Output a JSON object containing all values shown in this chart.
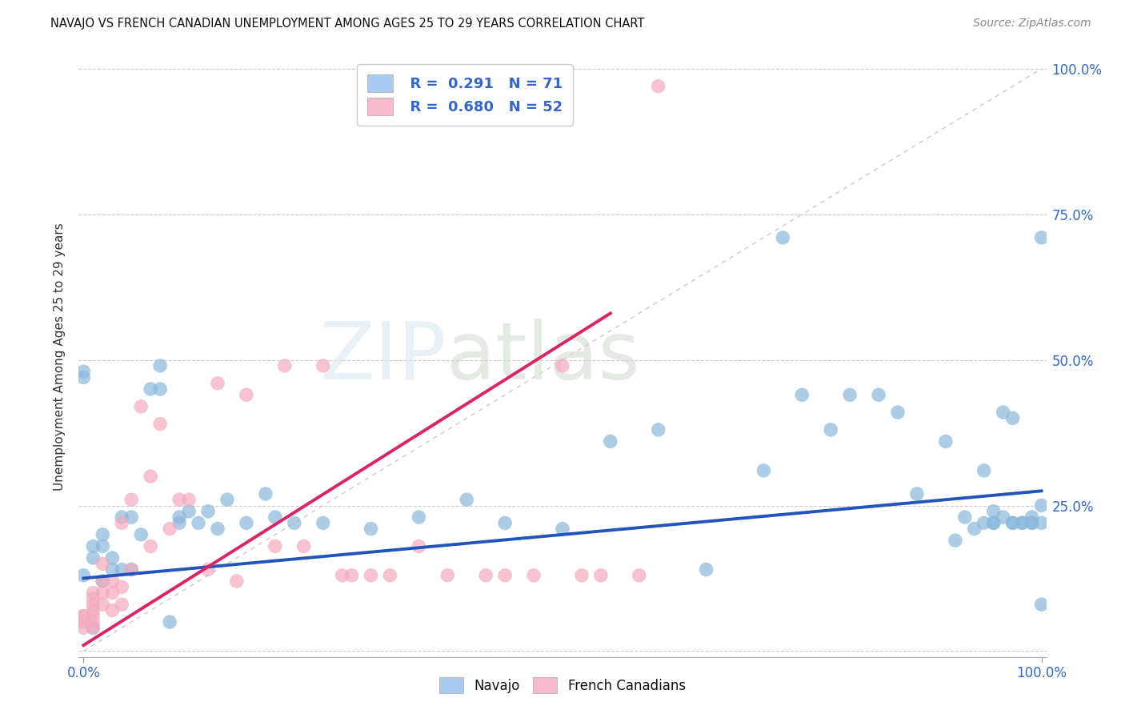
{
  "title": "NAVAJO VS FRENCH CANADIAN UNEMPLOYMENT AMONG AGES 25 TO 29 YEARS CORRELATION CHART",
  "source": "Source: ZipAtlas.com",
  "ylabel": "Unemployment Among Ages 25 to 29 years",
  "navajo_R": 0.291,
  "navajo_N": 71,
  "french_R": 0.68,
  "french_N": 52,
  "navajo_color": "#8BB8DC",
  "french_color": "#F4AABE",
  "navajo_line_color": "#2255BB",
  "french_line_color": "#DD2266",
  "watermark_zip": "ZIP",
  "watermark_atlas": "atlas",
  "navajo_scatter_x": [
    0.0,
    0.0,
    0.0,
    0.01,
    0.01,
    0.01,
    0.02,
    0.02,
    0.02,
    0.03,
    0.03,
    0.04,
    0.04,
    0.05,
    0.05,
    0.06,
    0.07,
    0.08,
    0.08,
    0.09,
    0.1,
    0.1,
    0.11,
    0.12,
    0.13,
    0.14,
    0.15,
    0.17,
    0.19,
    0.2,
    0.22,
    0.25,
    0.3,
    0.35,
    0.4,
    0.44,
    0.5,
    0.55,
    0.6,
    0.65,
    0.71,
    0.73,
    0.75,
    0.78,
    0.8,
    0.83,
    0.85,
    0.87,
    0.9,
    0.91,
    0.92,
    0.93,
    0.94,
    0.94,
    0.95,
    0.95,
    0.95,
    0.96,
    0.96,
    0.97,
    0.97,
    0.97,
    0.98,
    0.98,
    0.99,
    0.99,
    0.99,
    1.0,
    1.0,
    1.0,
    1.0
  ],
  "navajo_scatter_y": [
    0.13,
    0.48,
    0.47,
    0.18,
    0.16,
    0.04,
    0.2,
    0.18,
    0.12,
    0.16,
    0.14,
    0.14,
    0.23,
    0.14,
    0.23,
    0.2,
    0.45,
    0.49,
    0.45,
    0.05,
    0.23,
    0.22,
    0.24,
    0.22,
    0.24,
    0.21,
    0.26,
    0.22,
    0.27,
    0.23,
    0.22,
    0.22,
    0.21,
    0.23,
    0.26,
    0.22,
    0.21,
    0.36,
    0.38,
    0.14,
    0.31,
    0.71,
    0.44,
    0.38,
    0.44,
    0.44,
    0.41,
    0.27,
    0.36,
    0.19,
    0.23,
    0.21,
    0.22,
    0.31,
    0.22,
    0.22,
    0.24,
    0.23,
    0.41,
    0.22,
    0.22,
    0.4,
    0.22,
    0.22,
    0.23,
    0.22,
    0.22,
    0.25,
    0.71,
    0.22,
    0.08
  ],
  "french_scatter_x": [
    0.0,
    0.0,
    0.0,
    0.0,
    0.01,
    0.01,
    0.01,
    0.01,
    0.01,
    0.01,
    0.01,
    0.02,
    0.02,
    0.02,
    0.02,
    0.03,
    0.03,
    0.03,
    0.04,
    0.04,
    0.04,
    0.05,
    0.05,
    0.06,
    0.07,
    0.07,
    0.08,
    0.09,
    0.1,
    0.11,
    0.13,
    0.14,
    0.16,
    0.17,
    0.2,
    0.21,
    0.23,
    0.25,
    0.27,
    0.28,
    0.3,
    0.32,
    0.35,
    0.38,
    0.42,
    0.44,
    0.47,
    0.5,
    0.52,
    0.54,
    0.58,
    0.6
  ],
  "french_scatter_y": [
    0.06,
    0.06,
    0.05,
    0.04,
    0.1,
    0.09,
    0.08,
    0.07,
    0.06,
    0.05,
    0.04,
    0.15,
    0.12,
    0.1,
    0.08,
    0.12,
    0.1,
    0.07,
    0.22,
    0.11,
    0.08,
    0.26,
    0.14,
    0.42,
    0.3,
    0.18,
    0.39,
    0.21,
    0.26,
    0.26,
    0.14,
    0.46,
    0.12,
    0.44,
    0.18,
    0.49,
    0.18,
    0.49,
    0.13,
    0.13,
    0.13,
    0.13,
    0.18,
    0.13,
    0.13,
    0.13,
    0.13,
    0.49,
    0.13,
    0.13,
    0.13,
    0.97
  ],
  "navajo_line_x": [
    0.0,
    1.0
  ],
  "navajo_line_y": [
    0.125,
    0.275
  ],
  "french_line_x": [
    0.0,
    0.55
  ],
  "french_line_y": [
    0.01,
    0.58
  ],
  "ref_line_x": [
    0.0,
    1.0
  ],
  "ref_line_y": [
    0.0,
    1.0
  ],
  "xlim": [
    -0.005,
    1.005
  ],
  "ylim": [
    -0.01,
    1.02
  ],
  "xtick_positions": [
    0.0,
    1.0
  ],
  "xtick_labels": [
    "0.0%",
    "100.0%"
  ],
  "ytick_positions": [
    0.0,
    0.25,
    0.5,
    0.75,
    1.0
  ],
  "ytick_right_labels": [
    "",
    "25.0%",
    "50.0%",
    "75.0%",
    "100.0%"
  ],
  "background_color": "#FFFFFF",
  "grid_color": "#CCCCCC",
  "legend_box_color_navajo": "#AACCEE",
  "legend_box_color_french": "#F9BBCC"
}
